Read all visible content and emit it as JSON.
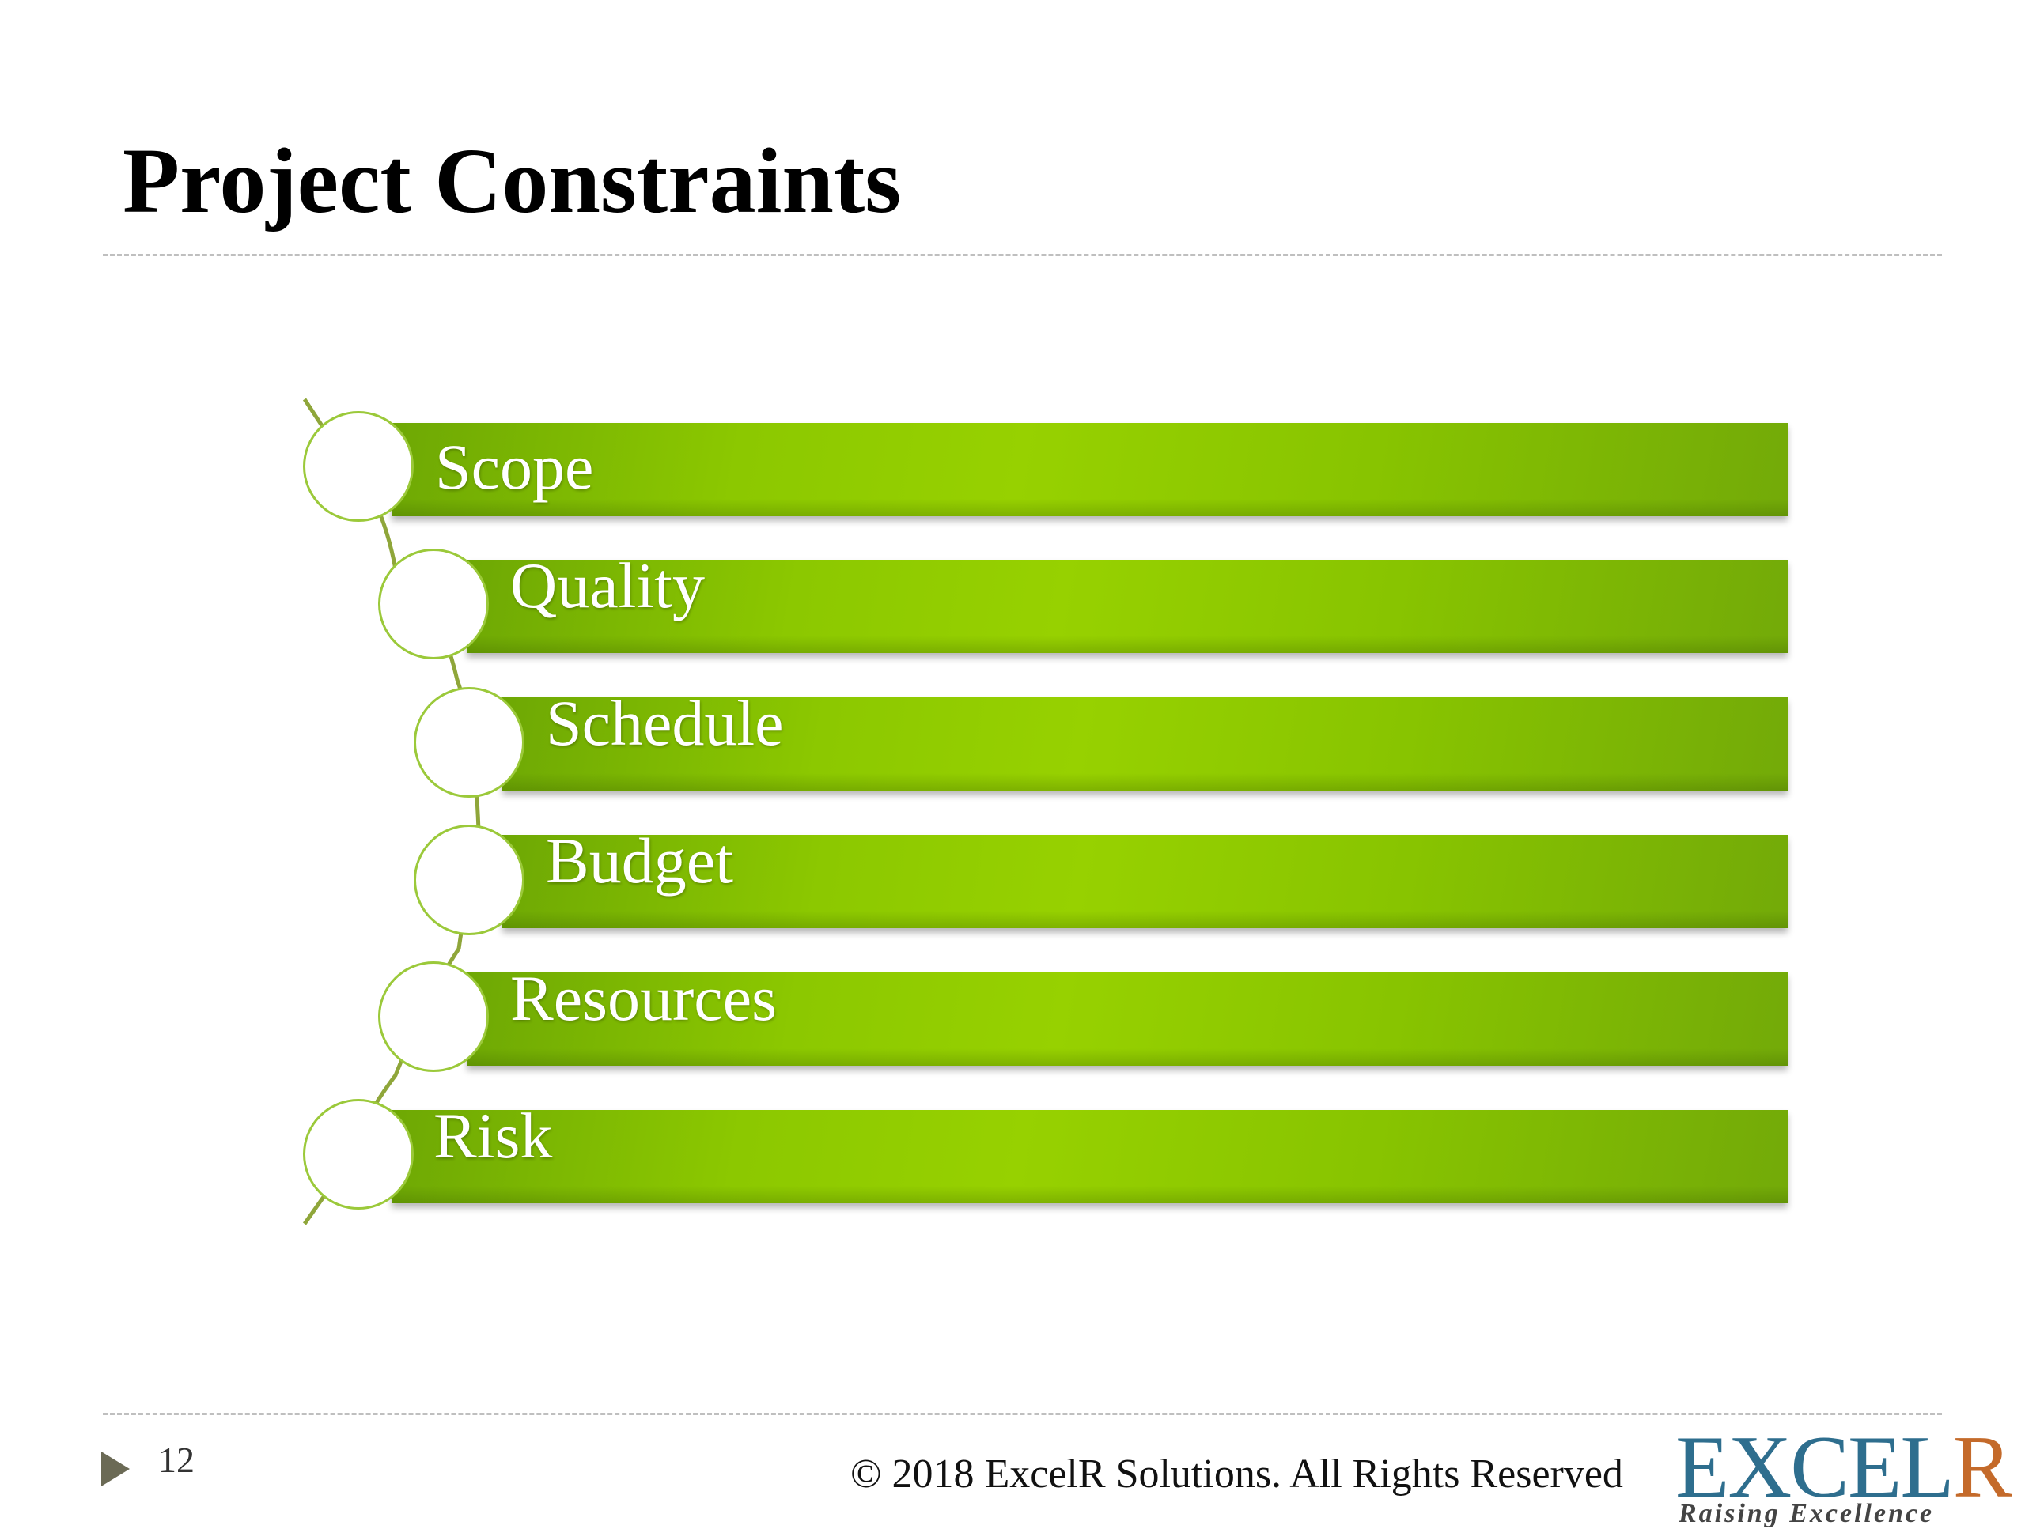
{
  "slide": {
    "title": "Project Constraints",
    "page_number": "12",
    "copyright": "© 2018 ExcelR Solutions. All Rights Reserved"
  },
  "constraints": [
    {
      "label": "Scope"
    },
    {
      "label": "Quality"
    },
    {
      "label": "Schedule"
    },
    {
      "label": "Budget"
    },
    {
      "label": "Resources"
    },
    {
      "label": "Risk"
    }
  ],
  "logo": {
    "wordmark_part1": "EXCEL",
    "wordmark_part2": "R",
    "tagline": "Raising Excellence",
    "colors": {
      "primary": "#2e6e8e",
      "accent": "#c46a2a"
    }
  },
  "colors": {
    "bar_green": "#8cc800",
    "node_border": "#9bc93a",
    "page_marker": "#6b6a55"
  }
}
